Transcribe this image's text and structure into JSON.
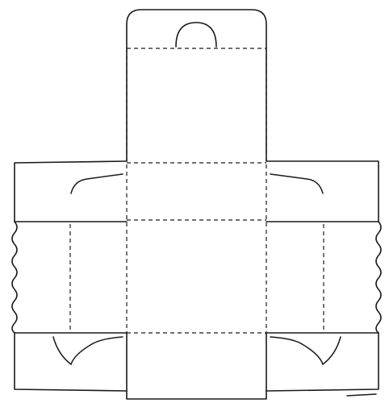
{
  "diagram": {
    "kind": "box-net",
    "line_color": "#1a1a1a",
    "background": "#ffffff",
    "cut_line_style": "solid",
    "fold_line_style": "dashed",
    "features": [
      "handle-cutout",
      "side-slits",
      "corner-tabs",
      "wavy-edges"
    ]
  }
}
